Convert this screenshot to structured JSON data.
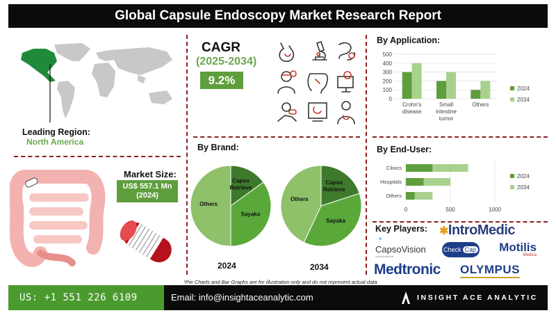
{
  "title": "Global Capsule Endoscopy Market Research Report",
  "region": {
    "label": "Leading Region:",
    "value": "North America"
  },
  "cagr": {
    "label": "CAGR",
    "period": "(2025-2034)",
    "value": "9.2%"
  },
  "market_size": {
    "label": "Market Size:",
    "line1": "US$ 557.1 Mn",
    "line2": "(2024)"
  },
  "brand": {
    "title": "By Brand:",
    "year_left": "2024",
    "year_right": "2034"
  },
  "application": {
    "title": "By Application:"
  },
  "end_user": {
    "title": "By End-User:"
  },
  "key_players": {
    "title": "Key Players:",
    "intromedic": "IntroMedic",
    "capsovision": "CapsoVision",
    "capsovision_tag": "capsovision tagline",
    "checkcap_a": "Check",
    "checkcap_b": "Cap",
    "motilis": "Motilis",
    "motilis_sub": "Medica",
    "medtronic": "Medtronic",
    "olympus": "OLYMPUS"
  },
  "note": "*Pie Charts and Bar Graphs are for illustration only and do not represent actual data",
  "footer": {
    "phone": "US: +1 551 226 6109",
    "email": "Email: info@insightaceanalytic.com",
    "brand": "INSIGHT ACE ANALYTIC"
  },
  "colors": {
    "dark_green": "#5e9e3d",
    "light_green": "#a9d18e",
    "pie_light": "#8fc06a",
    "pie_mid": "#5aa83a",
    "pie_dark": "#3d7a2c",
    "accent_red": "#c0392b",
    "black": "#0b0b0b"
  },
  "icons": [
    "stomach-icon",
    "microscope-icon",
    "intestine-icon",
    "doctor-icon",
    "colon-icon",
    "monitor-icon",
    "capsule-hand-icon",
    "screen-stomach-icon",
    "patient-icon"
  ],
  "chart_data": [
    {
      "type": "pie",
      "title": "2024",
      "slices": [
        {
          "label": "Others",
          "value": 50
        },
        {
          "label": "Capso Retrieve",
          "value": 15
        },
        {
          "label": "Sayaka",
          "value": 35
        }
      ]
    },
    {
      "type": "pie",
      "title": "2034",
      "slices": [
        {
          "label": "Others",
          "value": 43
        },
        {
          "label": "Capso Retrieve",
          "value": 20
        },
        {
          "label": "Sayaka",
          "value": 37
        }
      ]
    },
    {
      "type": "bar",
      "title": "By Application:",
      "categories": [
        "Crohn's disease",
        "Small intestine tumor",
        "Others"
      ],
      "series": [
        {
          "name": "2024",
          "values": [
            300,
            200,
            100
          ]
        },
        {
          "name": "2034",
          "values": [
            400,
            300,
            200
          ]
        }
      ],
      "ylim": [
        0,
        500
      ],
      "yticks": [
        0,
        100,
        200,
        300,
        400,
        500
      ],
      "legend": "right"
    },
    {
      "type": "bar",
      "orientation": "horizontal",
      "title": "By End-User:",
      "categories": [
        "Clinics",
        "Hospitals",
        "Others"
      ],
      "series": [
        {
          "name": "2024",
          "values": [
            300,
            200,
            100
          ]
        },
        {
          "name": "2034",
          "values": [
            400,
            300,
            200
          ]
        }
      ],
      "xlim": [
        0,
        1000
      ],
      "xticks": [
        0,
        500,
        1000
      ],
      "stacked": true,
      "legend": "right"
    }
  ]
}
